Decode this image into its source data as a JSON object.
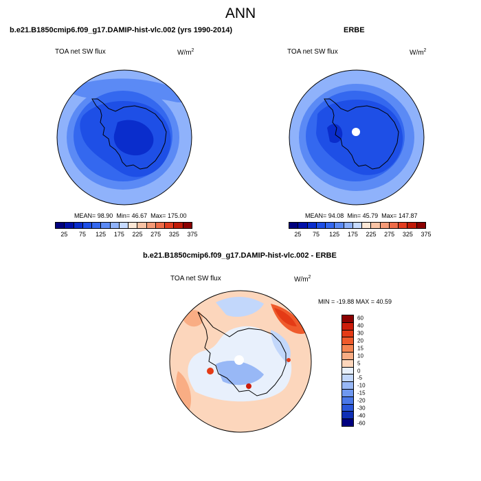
{
  "figure_title": "ANN",
  "chart_data": [
    {
      "type": "heatmap",
      "title": "b.e21.B1850cmip6.f09_g17.DAMIP-hist-vlc.002 (yrs 1990-2014)",
      "left_label": "TOA net SW flux",
      "right_label": "W/m",
      "units_sup": "2",
      "stats": {
        "mean_label": "MEAN=",
        "mean": "98.90",
        "min_label": "Min=",
        "min": "46.67",
        "max_label": "Max=",
        "max": "175.00"
      },
      "colorbar_ticks": [
        "25",
        "75",
        "125",
        "175",
        "225",
        "275",
        "325",
        "375"
      ]
    },
    {
      "type": "heatmap",
      "title": "ERBE",
      "left_label": "TOA net SW flux",
      "right_label": "W/m",
      "units_sup": "2",
      "stats": {
        "mean_label": "MEAN=",
        "mean": "94.08",
        "min_label": "Min=",
        "min": "45.79",
        "max_label": "Max=",
        "max": "147.87"
      },
      "colorbar_ticks": [
        "25",
        "75",
        "125",
        "175",
        "225",
        "275",
        "325",
        "375"
      ]
    },
    {
      "type": "heatmap",
      "title": "b.e21.B1850cmip6.f09_g17.DAMIP-hist-vlc.002 - ERBE",
      "left_label": "TOA net SW flux",
      "right_label": "W/m",
      "units_sup": "2",
      "minmax_label": "MIN = -19.88 MAX =  40.59",
      "colorbar_ticks": [
        "60",
        "40",
        "30",
        "20",
        "15",
        "10",
        "5",
        "0",
        "-5",
        "-10",
        "-15",
        "-20",
        "-30",
        "-40",
        "-60"
      ]
    }
  ],
  "colors": {
    "abs_scale": [
      "#00007d",
      "#0010a8",
      "#0a2dcc",
      "#1e4fe6",
      "#3468ef",
      "#5b8af5",
      "#8fb2fb",
      "#c6daff",
      "#fbe7d6",
      "#f9c3a5",
      "#f59a77",
      "#ee6c48",
      "#e23d20",
      "#c01a08",
      "#8b0000"
    ],
    "diff_scale": [
      "#8b0000",
      "#cd1c0a",
      "#e43b16",
      "#ef5b2c",
      "#f58552",
      "#f9ad84",
      "#fcd6bc",
      "#e8f0fc",
      "#c2d7fb",
      "#98b8f6",
      "#6f98f0",
      "#4a78e8",
      "#2a57d9",
      "#0f2fb5",
      "#000080"
    ]
  }
}
